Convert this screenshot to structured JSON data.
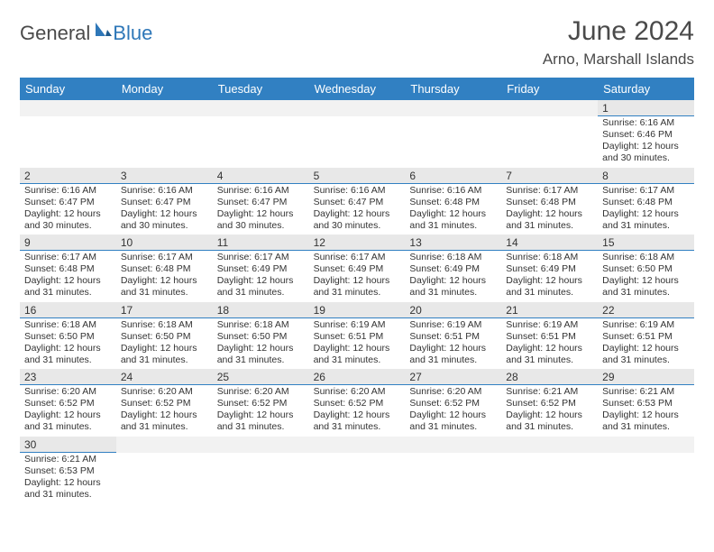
{
  "logo": {
    "text1": "General",
    "text2": "Blue"
  },
  "title": "June 2024",
  "location": "Arno, Marshall Islands",
  "colors": {
    "header_bg": "#3180c2",
    "header_text": "#ffffff",
    "daynum_bg": "#e8e8e8",
    "daynum_border": "#3180c2",
    "text": "#333333",
    "logo_gray": "#4a4a4a",
    "logo_blue": "#2e77b8"
  },
  "day_names": [
    "Sunday",
    "Monday",
    "Tuesday",
    "Wednesday",
    "Thursday",
    "Friday",
    "Saturday"
  ],
  "weeks": [
    [
      null,
      null,
      null,
      null,
      null,
      null,
      {
        "n": "1",
        "sr": "Sunrise: 6:16 AM",
        "ss": "Sunset: 6:46 PM",
        "d1": "Daylight: 12 hours",
        "d2": "and 30 minutes."
      }
    ],
    [
      {
        "n": "2",
        "sr": "Sunrise: 6:16 AM",
        "ss": "Sunset: 6:47 PM",
        "d1": "Daylight: 12 hours",
        "d2": "and 30 minutes."
      },
      {
        "n": "3",
        "sr": "Sunrise: 6:16 AM",
        "ss": "Sunset: 6:47 PM",
        "d1": "Daylight: 12 hours",
        "d2": "and 30 minutes."
      },
      {
        "n": "4",
        "sr": "Sunrise: 6:16 AM",
        "ss": "Sunset: 6:47 PM",
        "d1": "Daylight: 12 hours",
        "d2": "and 30 minutes."
      },
      {
        "n": "5",
        "sr": "Sunrise: 6:16 AM",
        "ss": "Sunset: 6:47 PM",
        "d1": "Daylight: 12 hours",
        "d2": "and 30 minutes."
      },
      {
        "n": "6",
        "sr": "Sunrise: 6:16 AM",
        "ss": "Sunset: 6:48 PM",
        "d1": "Daylight: 12 hours",
        "d2": "and 31 minutes."
      },
      {
        "n": "7",
        "sr": "Sunrise: 6:17 AM",
        "ss": "Sunset: 6:48 PM",
        "d1": "Daylight: 12 hours",
        "d2": "and 31 minutes."
      },
      {
        "n": "8",
        "sr": "Sunrise: 6:17 AM",
        "ss": "Sunset: 6:48 PM",
        "d1": "Daylight: 12 hours",
        "d2": "and 31 minutes."
      }
    ],
    [
      {
        "n": "9",
        "sr": "Sunrise: 6:17 AM",
        "ss": "Sunset: 6:48 PM",
        "d1": "Daylight: 12 hours",
        "d2": "and 31 minutes."
      },
      {
        "n": "10",
        "sr": "Sunrise: 6:17 AM",
        "ss": "Sunset: 6:48 PM",
        "d1": "Daylight: 12 hours",
        "d2": "and 31 minutes."
      },
      {
        "n": "11",
        "sr": "Sunrise: 6:17 AM",
        "ss": "Sunset: 6:49 PM",
        "d1": "Daylight: 12 hours",
        "d2": "and 31 minutes."
      },
      {
        "n": "12",
        "sr": "Sunrise: 6:17 AM",
        "ss": "Sunset: 6:49 PM",
        "d1": "Daylight: 12 hours",
        "d2": "and 31 minutes."
      },
      {
        "n": "13",
        "sr": "Sunrise: 6:18 AM",
        "ss": "Sunset: 6:49 PM",
        "d1": "Daylight: 12 hours",
        "d2": "and 31 minutes."
      },
      {
        "n": "14",
        "sr": "Sunrise: 6:18 AM",
        "ss": "Sunset: 6:49 PM",
        "d1": "Daylight: 12 hours",
        "d2": "and 31 minutes."
      },
      {
        "n": "15",
        "sr": "Sunrise: 6:18 AM",
        "ss": "Sunset: 6:50 PM",
        "d1": "Daylight: 12 hours",
        "d2": "and 31 minutes."
      }
    ],
    [
      {
        "n": "16",
        "sr": "Sunrise: 6:18 AM",
        "ss": "Sunset: 6:50 PM",
        "d1": "Daylight: 12 hours",
        "d2": "and 31 minutes."
      },
      {
        "n": "17",
        "sr": "Sunrise: 6:18 AM",
        "ss": "Sunset: 6:50 PM",
        "d1": "Daylight: 12 hours",
        "d2": "and 31 minutes."
      },
      {
        "n": "18",
        "sr": "Sunrise: 6:18 AM",
        "ss": "Sunset: 6:50 PM",
        "d1": "Daylight: 12 hours",
        "d2": "and 31 minutes."
      },
      {
        "n": "19",
        "sr": "Sunrise: 6:19 AM",
        "ss": "Sunset: 6:51 PM",
        "d1": "Daylight: 12 hours",
        "d2": "and 31 minutes."
      },
      {
        "n": "20",
        "sr": "Sunrise: 6:19 AM",
        "ss": "Sunset: 6:51 PM",
        "d1": "Daylight: 12 hours",
        "d2": "and 31 minutes."
      },
      {
        "n": "21",
        "sr": "Sunrise: 6:19 AM",
        "ss": "Sunset: 6:51 PM",
        "d1": "Daylight: 12 hours",
        "d2": "and 31 minutes."
      },
      {
        "n": "22",
        "sr": "Sunrise: 6:19 AM",
        "ss": "Sunset: 6:51 PM",
        "d1": "Daylight: 12 hours",
        "d2": "and 31 minutes."
      }
    ],
    [
      {
        "n": "23",
        "sr": "Sunrise: 6:20 AM",
        "ss": "Sunset: 6:52 PM",
        "d1": "Daylight: 12 hours",
        "d2": "and 31 minutes."
      },
      {
        "n": "24",
        "sr": "Sunrise: 6:20 AM",
        "ss": "Sunset: 6:52 PM",
        "d1": "Daylight: 12 hours",
        "d2": "and 31 minutes."
      },
      {
        "n": "25",
        "sr": "Sunrise: 6:20 AM",
        "ss": "Sunset: 6:52 PM",
        "d1": "Daylight: 12 hours",
        "d2": "and 31 minutes."
      },
      {
        "n": "26",
        "sr": "Sunrise: 6:20 AM",
        "ss": "Sunset: 6:52 PM",
        "d1": "Daylight: 12 hours",
        "d2": "and 31 minutes."
      },
      {
        "n": "27",
        "sr": "Sunrise: 6:20 AM",
        "ss": "Sunset: 6:52 PM",
        "d1": "Daylight: 12 hours",
        "d2": "and 31 minutes."
      },
      {
        "n": "28",
        "sr": "Sunrise: 6:21 AM",
        "ss": "Sunset: 6:52 PM",
        "d1": "Daylight: 12 hours",
        "d2": "and 31 minutes."
      },
      {
        "n": "29",
        "sr": "Sunrise: 6:21 AM",
        "ss": "Sunset: 6:53 PM",
        "d1": "Daylight: 12 hours",
        "d2": "and 31 minutes."
      }
    ],
    [
      {
        "n": "30",
        "sr": "Sunrise: 6:21 AM",
        "ss": "Sunset: 6:53 PM",
        "d1": "Daylight: 12 hours",
        "d2": "and 31 minutes."
      },
      null,
      null,
      null,
      null,
      null,
      null
    ]
  ]
}
